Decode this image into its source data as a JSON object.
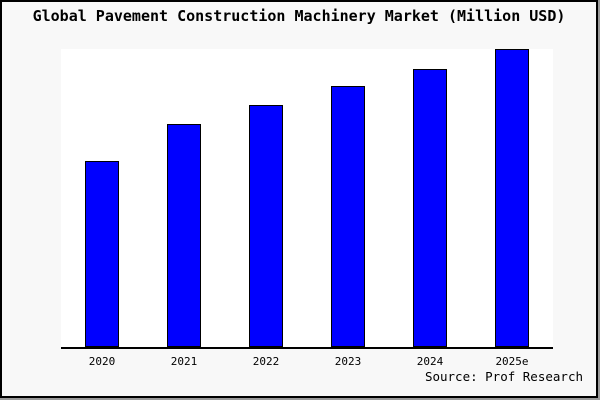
{
  "figure": {
    "background": "#F8F8F8",
    "border_color": "#000000",
    "shadow_color": "#9A9A9A",
    "plot_background": "#FFFFFF",
    "axis_color": "#000000",
    "text_color": "#000000"
  },
  "chart_data": {
    "type": "bar",
    "title": "Global Pavement Construction Machinery Market (Million USD)",
    "categories": [
      "2020",
      "2021",
      "2022",
      "2023",
      "2024",
      "2025e"
    ],
    "values": [
      62.4,
      75.0,
      81.2,
      87.5,
      93.4,
      100.0
    ],
    "values_note": "no numeric y-axis is shown in the image; values are relative bar heights with the tallest bar (2025e) = 100",
    "xlabel": "",
    "ylabel": "",
    "ylim": [
      0,
      100
    ],
    "y_axis_ticks": [],
    "grid": false,
    "legend": false,
    "bar_fill": "#0000FF",
    "bar_border": "#000000",
    "source_note": "Source: Prof Research"
  }
}
